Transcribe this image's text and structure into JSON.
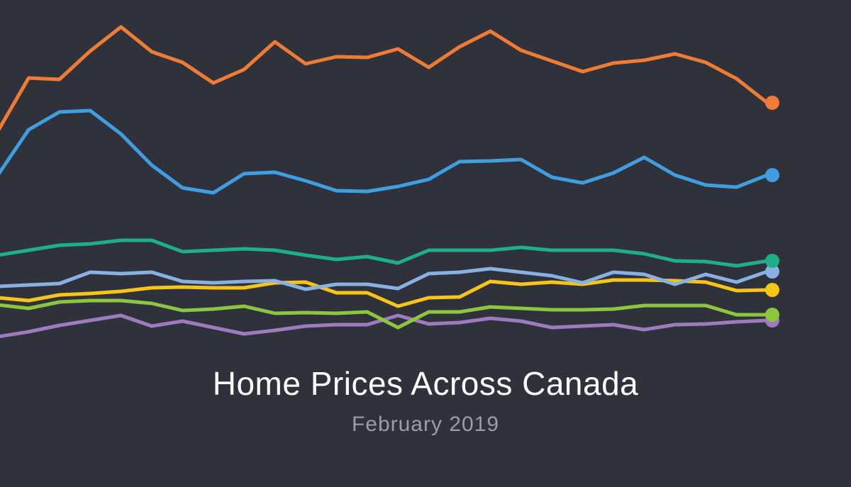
{
  "chart_data": {
    "type": "line",
    "title": "Home Prices Across Canada",
    "subtitle": "February 2019",
    "xlabel": "",
    "ylabel": "",
    "grid": false,
    "legend": "none",
    "ylim": [
      0,
      500
    ],
    "x": [
      0,
      1,
      2,
      3,
      4,
      5,
      6,
      7,
      8,
      9,
      10,
      11,
      12,
      13,
      14,
      15,
      16,
      17,
      18,
      19,
      20,
      21,
      22,
      23,
      24,
      25
    ],
    "series": [
      {
        "color": "#ef7b35",
        "marker_color": "#ef7b35",
        "values": [
          315,
          390,
          388,
          428,
          462,
          427,
          412,
          383,
          402,
          441,
          410,
          420,
          419,
          431,
          405,
          434,
          456,
          429,
          414,
          399,
          411,
          415,
          424,
          412,
          389,
          355
        ]
      },
      {
        "color": "#3f9ee0",
        "marker_color": "#3f9ee0",
        "values": [
          253,
          317,
          342,
          344,
          311,
          267,
          235,
          228,
          255,
          257,
          245,
          231,
          230,
          237,
          247,
          272,
          273,
          275,
          250,
          242,
          256,
          278,
          253,
          239,
          236,
          253
        ]
      },
      {
        "color": "#1fae8a",
        "marker_color": "#1fae8a",
        "values": [
          140,
          147,
          154,
          156,
          161,
          161,
          145,
          147,
          149,
          147,
          140,
          134,
          138,
          129,
          147,
          147,
          147,
          151,
          147,
          147,
          147,
          142,
          132,
          131,
          125,
          132
        ]
      },
      {
        "color": "#88b0e0",
        "marker_color": "#88b0e0",
        "values": [
          96,
          98,
          100,
          116,
          114,
          116,
          103,
          101,
          103,
          104,
          92,
          99,
          99,
          93,
          114,
          116,
          121,
          116,
          111,
          101,
          116,
          113,
          99,
          113,
          102,
          117
        ]
      },
      {
        "color": "#f7c518",
        "marker_color": "#f7c518",
        "values": [
          80,
          76,
          84,
          86,
          89,
          94,
          95,
          94,
          94,
          101,
          102,
          87,
          87,
          68,
          80,
          81,
          103,
          99,
          102,
          99,
          105,
          105,
          104,
          102,
          90,
          91
        ]
      },
      {
        "color": "#8cc63f",
        "marker_color": "#8cc63f",
        "values": [
          70,
          65,
          74,
          76,
          76,
          72,
          62,
          64,
          68,
          58,
          59,
          58,
          60,
          38,
          60,
          60,
          67,
          65,
          63,
          63,
          64,
          69,
          69,
          69,
          56,
          56
        ]
      },
      {
        "color": "#9e7bbf",
        "marker_color": "#9e7bbf",
        "values": [
          25,
          32,
          41,
          48,
          55,
          40,
          47,
          38,
          29,
          34,
          40,
          42,
          42,
          55,
          43,
          45,
          51,
          47,
          38,
          40,
          42,
          35,
          42,
          43,
          46,
          48
        ]
      }
    ]
  }
}
